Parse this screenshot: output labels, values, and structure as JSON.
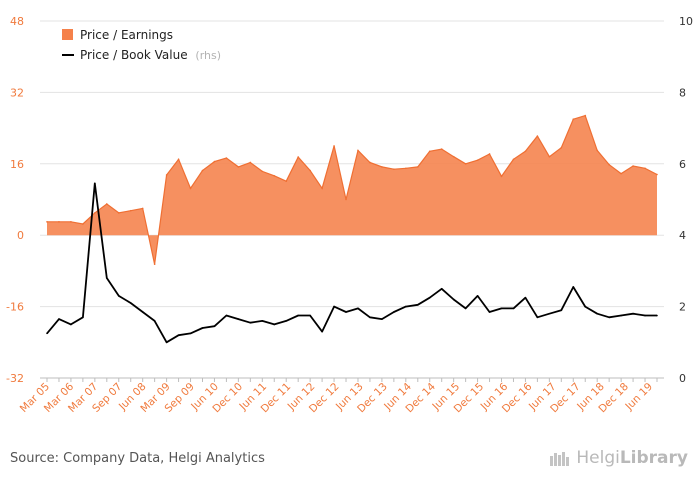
{
  "chart_data": {
    "type": "line",
    "title": "",
    "xlabel": "",
    "ylabel": "",
    "left_axis": {
      "min": -32,
      "max": 48,
      "ticks": [
        48,
        32,
        16,
        0,
        -16,
        -32
      ],
      "color": "#f07a3d"
    },
    "right_axis": {
      "min": 0,
      "max": 10,
      "ticks": [
        10,
        8,
        6,
        4,
        2,
        0
      ],
      "color": "#333333"
    },
    "grid": true,
    "x_tick_labels": [
      "Mar 05",
      "Mar 06",
      "Mar 07",
      "Sep 07",
      "Jun 08",
      "Mar 09",
      "Sep 09",
      "Jun 10",
      "Dec 10",
      "Jun 11",
      "Dec 11",
      "Jun 12",
      "Dec 12",
      "Jun 13",
      "Dec 13",
      "Jun 14",
      "Dec 14",
      "Jun 15",
      "Dec 15",
      "Jun 16",
      "Dec 16",
      "Jun 17",
      "Dec 17",
      "Jun 18",
      "Dec 18",
      "Jun 19"
    ],
    "series": [
      {
        "name": "Price / Earnings",
        "axis": "left",
        "style": "area",
        "color": "#f5814a",
        "values": [
          3.0,
          3.0,
          3.0,
          2.5,
          5.0,
          7.0,
          5.0,
          5.5,
          6.0,
          -6.5,
          13.5,
          17.0,
          10.5,
          14.5,
          16.5,
          17.3,
          15.3,
          16.3,
          14.3,
          13.3,
          12.1,
          17.5,
          14.5,
          10.5,
          20.0,
          8.0,
          19.0,
          16.3,
          15.3,
          14.8,
          15.0,
          15.3,
          18.8,
          19.3,
          17.6,
          16.0,
          16.8,
          18.2,
          13.2,
          17.0,
          18.8,
          22.2,
          17.6,
          19.6,
          26.0,
          26.8,
          19.0,
          15.8,
          13.8,
          15.5,
          15.0,
          13.6
        ]
      },
      {
        "name": "Price / Book Value",
        "axis": "right",
        "style": "line",
        "color": "#000000",
        "values": [
          1.25,
          1.65,
          1.5,
          1.7,
          5.45,
          2.8,
          2.3,
          2.1,
          1.85,
          1.6,
          1.0,
          1.2,
          1.25,
          1.4,
          1.45,
          1.75,
          1.65,
          1.55,
          1.6,
          1.5,
          1.6,
          1.75,
          1.75,
          1.3,
          2.0,
          1.85,
          1.95,
          1.7,
          1.65,
          1.85,
          2.0,
          2.05,
          2.25,
          2.5,
          2.2,
          1.95,
          2.3,
          1.85,
          1.95,
          1.95,
          2.25,
          1.7,
          1.8,
          1.9,
          2.55,
          2.0,
          1.8,
          1.7,
          1.75,
          1.8,
          1.75,
          1.75
        ]
      }
    ],
    "legend": {
      "placement": "top-left",
      "entries": [
        {
          "label": "Price / Earnings",
          "suffix": ""
        },
        {
          "label": "Price / Book Value",
          "suffix": "(rhs)"
        }
      ]
    }
  },
  "footer": {
    "source": "Source: Company Data, Helgi Analytics",
    "brand_light": "Helgi",
    "brand_bold": "Library"
  }
}
